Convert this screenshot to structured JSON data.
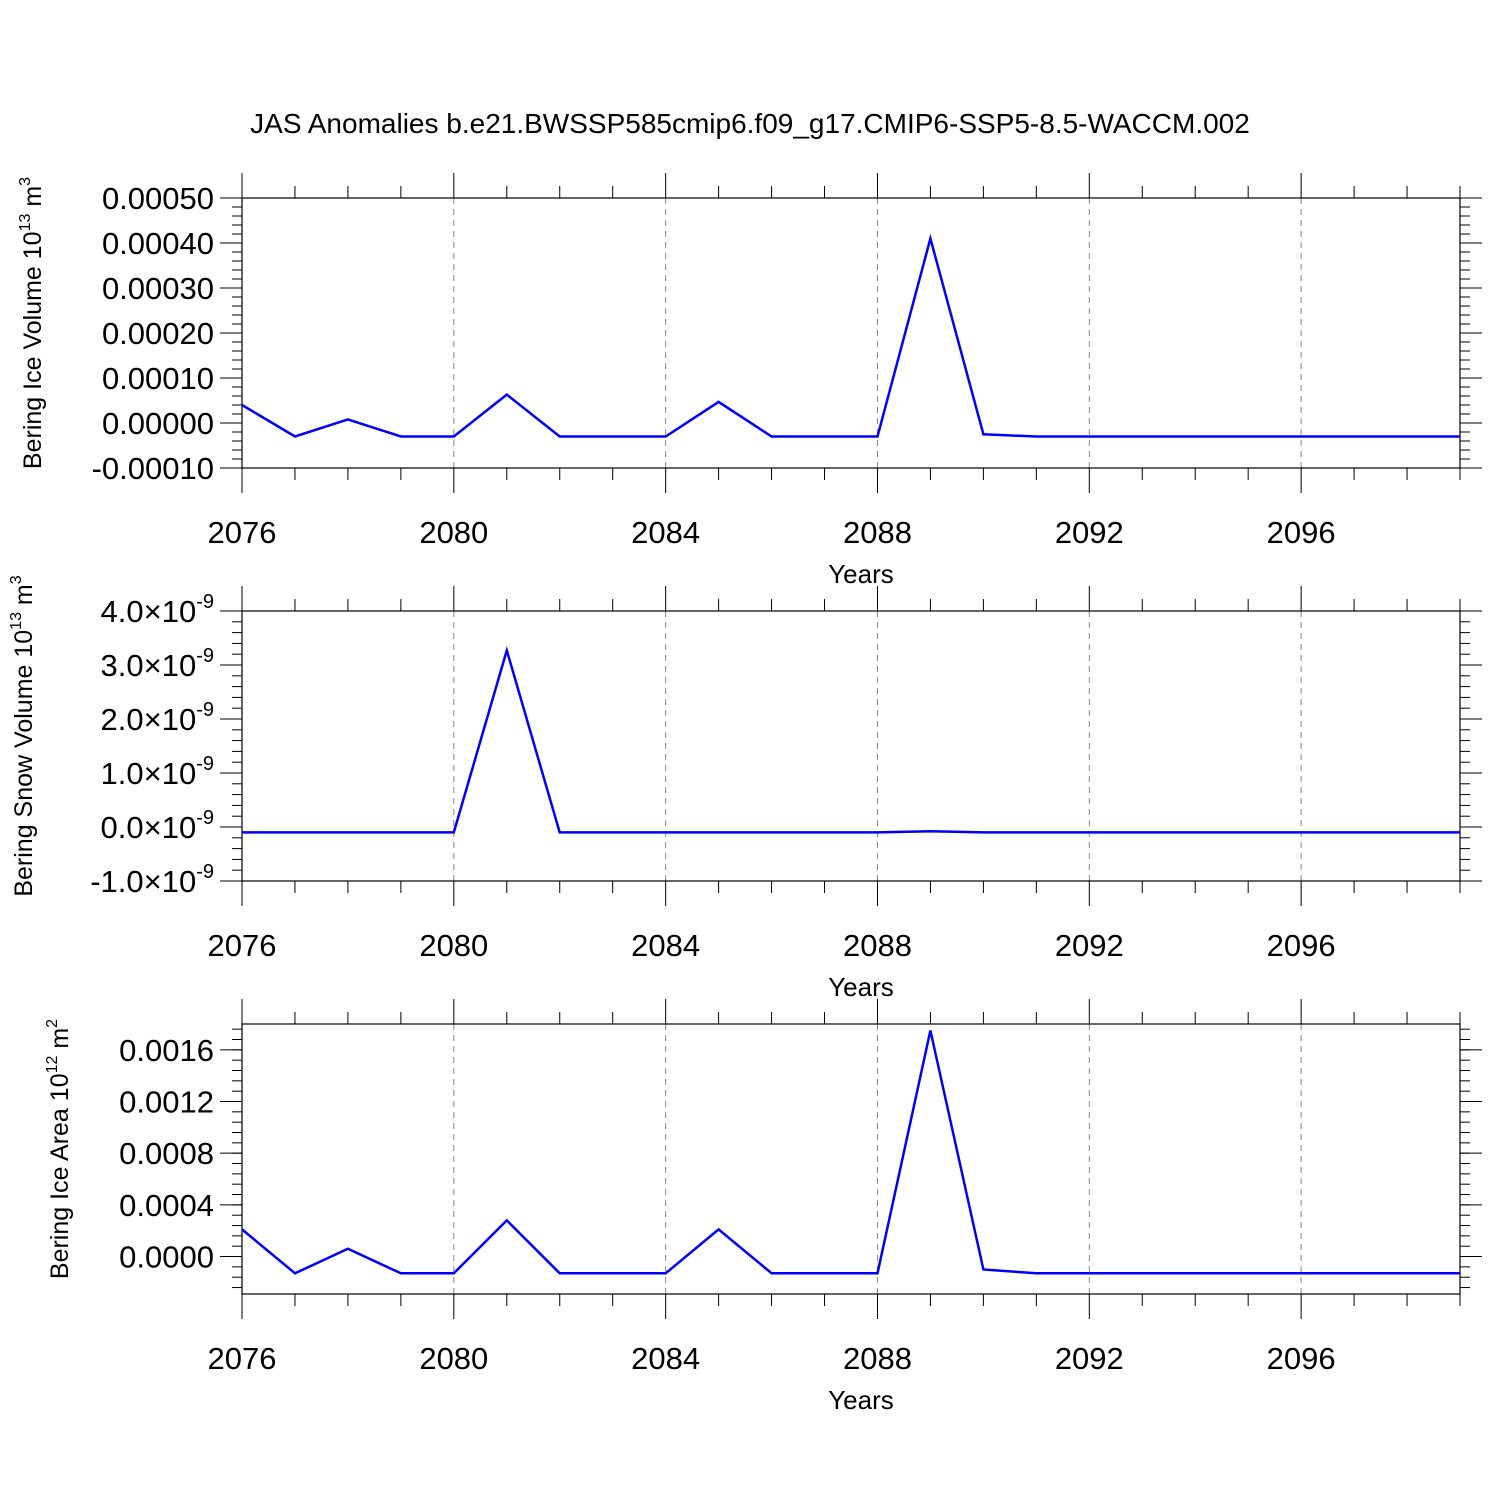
{
  "title": "JAS Anomalies b.e21.BWSSP585cmip6.f09_g17.CMIP6-SSP5-8.5-WACCM.002",
  "colors": {
    "series": "#0000ff",
    "axis": "#000000",
    "grid": "#888888"
  },
  "chart_data": [
    {
      "type": "line",
      "ylabel": "Bering Ice Volume 10",
      "ylabel_sup": "13",
      "ylabel_unit": " m",
      "ylabel_unit_sup": "3",
      "xlabel": "Years",
      "xlim": [
        2076,
        2099
      ],
      "ylim": [
        -0.0001,
        0.0005
      ],
      "x_ticks": [
        "2076",
        "2080",
        "2084",
        "2088",
        "2092",
        "2096"
      ],
      "y_ticks": [
        "0.00050",
        "0.00040",
        "0.00030",
        "0.00020",
        "0.00010",
        "0.00000",
        "-0.00010"
      ],
      "x": [
        2076,
        2077,
        2078,
        2079,
        2080,
        2081,
        2082,
        2083,
        2084,
        2085,
        2086,
        2087,
        2088,
        2089,
        2090,
        2091,
        2092,
        2093,
        2094,
        2095,
        2096,
        2097,
        2098,
        2099
      ],
      "values": [
        4e-05,
        -3e-05,
        8e-06,
        -3e-05,
        -3e-05,
        6.3e-05,
        -3e-05,
        -3e-05,
        -3e-05,
        4.7e-05,
        -3e-05,
        -3e-05,
        -3e-05,
        0.00041,
        -2.5e-05,
        -3e-05,
        -3e-05,
        -3e-05,
        -3e-05,
        -3e-05,
        -3e-05,
        -3e-05,
        -3e-05,
        -3e-05
      ],
      "vgrid": true
    },
    {
      "type": "line",
      "ylabel": "Bering Snow Volume 10",
      "ylabel_sup": "13",
      "ylabel_unit": " m",
      "ylabel_unit_sup": "3",
      "xlabel": "Years",
      "xlim": [
        2076,
        2099
      ],
      "ylim": [
        -1e-09,
        4e-09
      ],
      "x_ticks": [
        "2076",
        "2080",
        "2084",
        "2088",
        "2092",
        "2096"
      ],
      "y_ticks": [
        "4.0",
        "3.0",
        "2.0",
        "1.0",
        "0.0",
        "-1.0"
      ],
      "y_tick_suffix": "×10",
      "y_tick_exp": "-9",
      "x": [
        2076,
        2077,
        2078,
        2079,
        2080,
        2081,
        2082,
        2083,
        2084,
        2085,
        2086,
        2087,
        2088,
        2089,
        2090,
        2091,
        2092,
        2093,
        2094,
        2095,
        2096,
        2097,
        2098,
        2099
      ],
      "values": [
        -1e-10,
        -1e-10,
        -1e-10,
        -1e-10,
        -1e-10,
        3.27e-09,
        -1e-10,
        -1e-10,
        -1e-10,
        -1e-10,
        -1e-10,
        -1e-10,
        -1e-10,
        -8e-11,
        -1e-10,
        -1e-10,
        -1e-10,
        -1e-10,
        -1e-10,
        -1e-10,
        -1e-10,
        -1e-10,
        -1e-10,
        -1e-10
      ],
      "vgrid": true
    },
    {
      "type": "line",
      "ylabel": "Bering Ice Area 10",
      "ylabel_sup": "12",
      "ylabel_unit": " m",
      "ylabel_unit_sup": "2",
      "xlabel": "Years",
      "xlim": [
        2076,
        2099
      ],
      "ylim": [
        -0.00029,
        0.0018
      ],
      "x_ticks": [
        "2076",
        "2080",
        "2084",
        "2088",
        "2092",
        "2096"
      ],
      "y_ticks": [
        "0.0016",
        "0.0012",
        "0.0008",
        "0.0004",
        "0.0000"
      ],
      "y_tick_values": [
        0.0016,
        0.0012,
        0.0008,
        0.0004,
        0.0
      ],
      "x": [
        2076,
        2077,
        2078,
        2079,
        2080,
        2081,
        2082,
        2083,
        2084,
        2085,
        2086,
        2087,
        2088,
        2089,
        2090,
        2091,
        2092,
        2093,
        2094,
        2095,
        2096,
        2097,
        2098,
        2099
      ],
      "values": [
        0.00021,
        -0.00013,
        6e-05,
        -0.00013,
        -0.00013,
        0.00028,
        -0.00013,
        -0.00013,
        -0.00013,
        0.00021,
        -0.00013,
        -0.00013,
        -0.00013,
        0.00175,
        -0.0001,
        -0.00013,
        -0.00013,
        -0.00013,
        -0.00013,
        -0.00013,
        -0.00013,
        -0.00013,
        -0.00013,
        -0.00013
      ],
      "vgrid": true
    }
  ]
}
